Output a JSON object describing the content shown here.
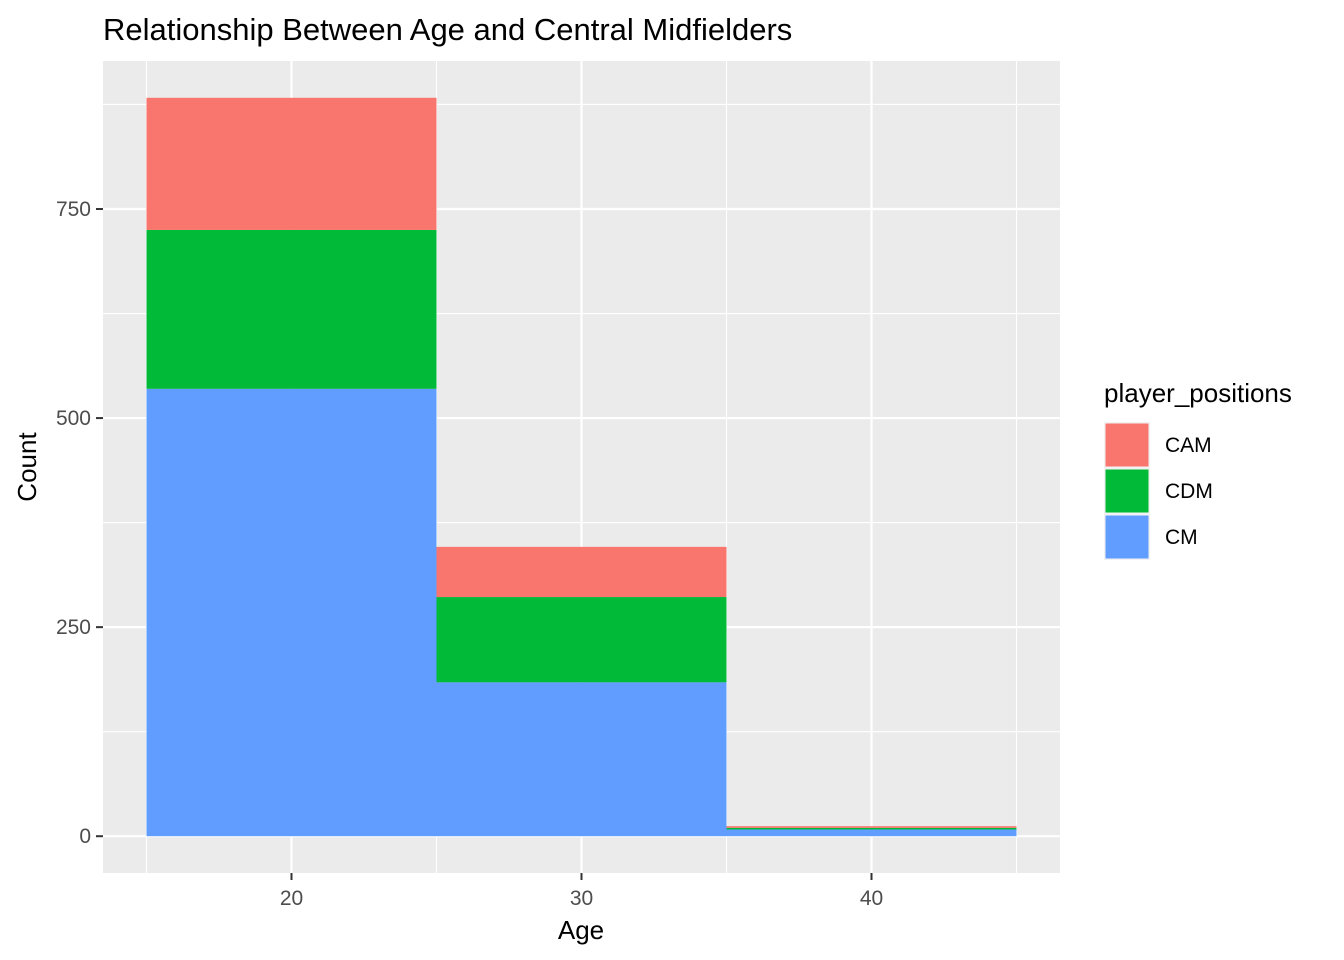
{
  "chart_data": {
    "type": "bar",
    "subtype": "stacked-histogram",
    "title": "Relationship Between Age and Central Midfielders",
    "xlabel": "Age",
    "ylabel": "Count",
    "bins": [
      {
        "from": 15,
        "to": 25
      },
      {
        "from": 25,
        "to": 35
      },
      {
        "from": 35,
        "to": 45
      }
    ],
    "series": [
      {
        "name": "CM",
        "color": "#619CFF",
        "values": [
          535,
          184,
          8
        ]
      },
      {
        "name": "CDM",
        "color": "#00BA38",
        "values": [
          190,
          102,
          2
        ]
      },
      {
        "name": "CAM",
        "color": "#F8766D",
        "values": [
          158,
          60,
          2
        ]
      }
    ],
    "totals": [
      883,
      346,
      12
    ],
    "xlim": [
      13.5,
      46.5
    ],
    "ylim": [
      -44,
      927
    ],
    "x_ticks": [
      20,
      30,
      40
    ],
    "y_ticks": [
      0,
      250,
      500,
      750
    ],
    "grid": true,
    "legend": {
      "title": "player_positions",
      "position": "right",
      "items": [
        {
          "label": "CAM",
          "color": "#F8766D"
        },
        {
          "label": "CDM",
          "color": "#00BA38"
        },
        {
          "label": "CM",
          "color": "#619CFF"
        }
      ]
    }
  }
}
